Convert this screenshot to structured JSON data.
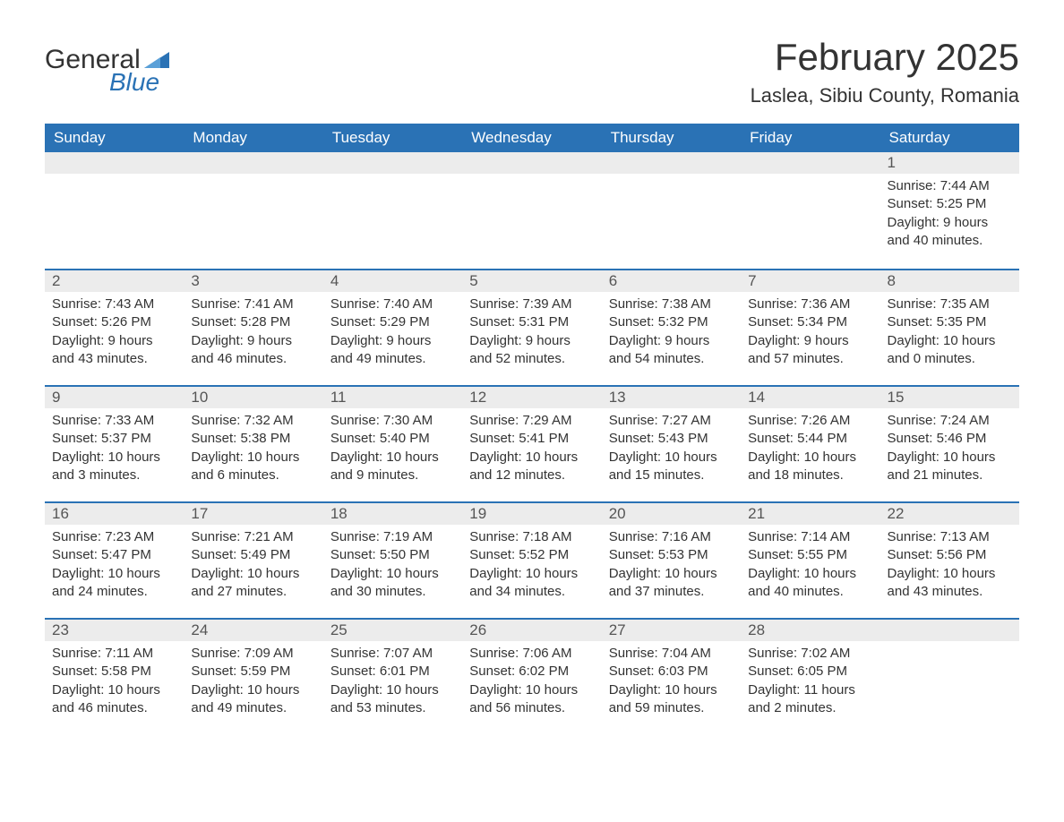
{
  "brand": {
    "general": "General",
    "blue": "Blue",
    "flag_color": "#2a72b5"
  },
  "title": {
    "month": "February 2025",
    "location": "Laslea, Sibiu County, Romania"
  },
  "style": {
    "header_bg": "#2a72b5",
    "header_text": "#ffffff",
    "daynum_bg": "#ececec",
    "row_divider": "#2a72b5",
    "body_text": "#333333",
    "page_bg": "#ffffff",
    "month_fontsize": 42,
    "location_fontsize": 22,
    "th_fontsize": 17,
    "daynum_fontsize": 17,
    "cell_fontsize": 15
  },
  "weekdays": [
    "Sunday",
    "Monday",
    "Tuesday",
    "Wednesday",
    "Thursday",
    "Friday",
    "Saturday"
  ],
  "labels": {
    "sunrise": "Sunrise:",
    "sunset": "Sunset:",
    "daylight": "Daylight:"
  },
  "weeks": [
    [
      null,
      null,
      null,
      null,
      null,
      null,
      {
        "n": "1",
        "sunrise": "7:44 AM",
        "sunset": "5:25 PM",
        "daylight": "9 hours and 40 minutes."
      }
    ],
    [
      {
        "n": "2",
        "sunrise": "7:43 AM",
        "sunset": "5:26 PM",
        "daylight": "9 hours and 43 minutes."
      },
      {
        "n": "3",
        "sunrise": "7:41 AM",
        "sunset": "5:28 PM",
        "daylight": "9 hours and 46 minutes."
      },
      {
        "n": "4",
        "sunrise": "7:40 AM",
        "sunset": "5:29 PM",
        "daylight": "9 hours and 49 minutes."
      },
      {
        "n": "5",
        "sunrise": "7:39 AM",
        "sunset": "5:31 PM",
        "daylight": "9 hours and 52 minutes."
      },
      {
        "n": "6",
        "sunrise": "7:38 AM",
        "sunset": "5:32 PM",
        "daylight": "9 hours and 54 minutes."
      },
      {
        "n": "7",
        "sunrise": "7:36 AM",
        "sunset": "5:34 PM",
        "daylight": "9 hours and 57 minutes."
      },
      {
        "n": "8",
        "sunrise": "7:35 AM",
        "sunset": "5:35 PM",
        "daylight": "10 hours and 0 minutes."
      }
    ],
    [
      {
        "n": "9",
        "sunrise": "7:33 AM",
        "sunset": "5:37 PM",
        "daylight": "10 hours and 3 minutes."
      },
      {
        "n": "10",
        "sunrise": "7:32 AM",
        "sunset": "5:38 PM",
        "daylight": "10 hours and 6 minutes."
      },
      {
        "n": "11",
        "sunrise": "7:30 AM",
        "sunset": "5:40 PM",
        "daylight": "10 hours and 9 minutes."
      },
      {
        "n": "12",
        "sunrise": "7:29 AM",
        "sunset": "5:41 PM",
        "daylight": "10 hours and 12 minutes."
      },
      {
        "n": "13",
        "sunrise": "7:27 AM",
        "sunset": "5:43 PM",
        "daylight": "10 hours and 15 minutes."
      },
      {
        "n": "14",
        "sunrise": "7:26 AM",
        "sunset": "5:44 PM",
        "daylight": "10 hours and 18 minutes."
      },
      {
        "n": "15",
        "sunrise": "7:24 AM",
        "sunset": "5:46 PM",
        "daylight": "10 hours and 21 minutes."
      }
    ],
    [
      {
        "n": "16",
        "sunrise": "7:23 AM",
        "sunset": "5:47 PM",
        "daylight": "10 hours and 24 minutes."
      },
      {
        "n": "17",
        "sunrise": "7:21 AM",
        "sunset": "5:49 PM",
        "daylight": "10 hours and 27 minutes."
      },
      {
        "n": "18",
        "sunrise": "7:19 AM",
        "sunset": "5:50 PM",
        "daylight": "10 hours and 30 minutes."
      },
      {
        "n": "19",
        "sunrise": "7:18 AM",
        "sunset": "5:52 PM",
        "daylight": "10 hours and 34 minutes."
      },
      {
        "n": "20",
        "sunrise": "7:16 AM",
        "sunset": "5:53 PM",
        "daylight": "10 hours and 37 minutes."
      },
      {
        "n": "21",
        "sunrise": "7:14 AM",
        "sunset": "5:55 PM",
        "daylight": "10 hours and 40 minutes."
      },
      {
        "n": "22",
        "sunrise": "7:13 AM",
        "sunset": "5:56 PM",
        "daylight": "10 hours and 43 minutes."
      }
    ],
    [
      {
        "n": "23",
        "sunrise": "7:11 AM",
        "sunset": "5:58 PM",
        "daylight": "10 hours and 46 minutes."
      },
      {
        "n": "24",
        "sunrise": "7:09 AM",
        "sunset": "5:59 PM",
        "daylight": "10 hours and 49 minutes."
      },
      {
        "n": "25",
        "sunrise": "7:07 AM",
        "sunset": "6:01 PM",
        "daylight": "10 hours and 53 minutes."
      },
      {
        "n": "26",
        "sunrise": "7:06 AM",
        "sunset": "6:02 PM",
        "daylight": "10 hours and 56 minutes."
      },
      {
        "n": "27",
        "sunrise": "7:04 AM",
        "sunset": "6:03 PM",
        "daylight": "10 hours and 59 minutes."
      },
      {
        "n": "28",
        "sunrise": "7:02 AM",
        "sunset": "6:05 PM",
        "daylight": "11 hours and 2 minutes."
      },
      null
    ]
  ]
}
